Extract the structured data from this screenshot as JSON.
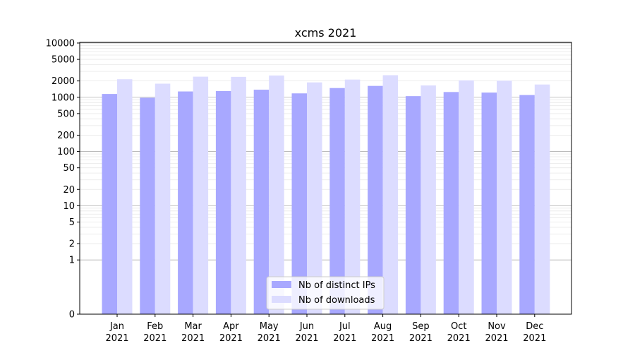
{
  "chart_data": {
    "type": "bar",
    "title": "xcms 2021",
    "xlabel": "",
    "ylabel": "",
    "y_scale": "symlog",
    "ylim": [
      0,
      10000
    ],
    "y_ticks": [
      0,
      1,
      2,
      5,
      10,
      20,
      50,
      100,
      200,
      500,
      1000,
      2000,
      5000,
      10000
    ],
    "categories": [
      [
        "Jan",
        "2021"
      ],
      [
        "Feb",
        "2021"
      ],
      [
        "Mar",
        "2021"
      ],
      [
        "Apr",
        "2021"
      ],
      [
        "May",
        "2021"
      ],
      [
        "Jun",
        "2021"
      ],
      [
        "Jul",
        "2021"
      ],
      [
        "Aug",
        "2021"
      ],
      [
        "Sep",
        "2021"
      ],
      [
        "Oct",
        "2021"
      ],
      [
        "Nov",
        "2021"
      ],
      [
        "Dec",
        "2021"
      ]
    ],
    "series": [
      {
        "name": "Nb of distinct IPs",
        "color": "#a8a8ff",
        "values": [
          1150,
          980,
          1280,
          1300,
          1380,
          1180,
          1480,
          1620,
          1050,
          1250,
          1220,
          1100
        ]
      },
      {
        "name": "Nb of downloads",
        "color": "#dcdcff",
        "values": [
          2150,
          1780,
          2400,
          2380,
          2520,
          1880,
          2120,
          2550,
          1650,
          2050,
          2020,
          1720
        ]
      }
    ],
    "legend_position": "bottom-center",
    "grid": true
  }
}
